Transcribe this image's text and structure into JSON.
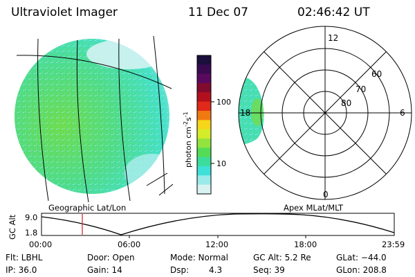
{
  "header": {
    "title": "Ultraviolet Imager",
    "date": "11 Dec 07",
    "time": "02:46:42 UT"
  },
  "colorbar": {
    "unit": "photon cm",
    "unit_exp1": "-2",
    "unit_mid": "s",
    "unit_exp2": "-1",
    "ticks": [
      "100",
      "10"
    ],
    "colors": [
      "#1b0f3d",
      "#3a0a50",
      "#5a0a5e",
      "#800b2e",
      "#b3101e",
      "#e0291a",
      "#f07a12",
      "#f6d51a",
      "#d4ec2a",
      "#92e33e",
      "#55dc56",
      "#3cdc9c",
      "#3fe0d8",
      "#9aeaea",
      "#d8f2f2"
    ]
  },
  "panels": {
    "left_label": "Geographic Lat/Lon",
    "right_label": "Apex MLat/MLT",
    "polar_labels": {
      "top": "12",
      "left": "18",
      "right": "6",
      "bottom": "0",
      "r60": "60",
      "r70": "70",
      "r80": "80"
    }
  },
  "timeline": {
    "axis_title": "GC Alt",
    "y_ticks": [
      "9.0",
      "1.8"
    ],
    "x_ticks": [
      "00:00",
      "06:00",
      "12:00",
      "18:00",
      "23:59"
    ],
    "marker_color": "#d0303a"
  },
  "status": {
    "flt": "Flt: LBHL",
    "door": "Door: Open",
    "mode": "Mode: Normal",
    "gc_alt": "GC Alt: 5.2 Re",
    "glat": "GLat: −44.0",
    "ip": "IP: 36.0",
    "gain": "Gain: 14",
    "dsp_label": "Dsp:",
    "dsp_value": "4.3",
    "seq": "Seq: 39",
    "glon": "GLon: 208.8"
  }
}
